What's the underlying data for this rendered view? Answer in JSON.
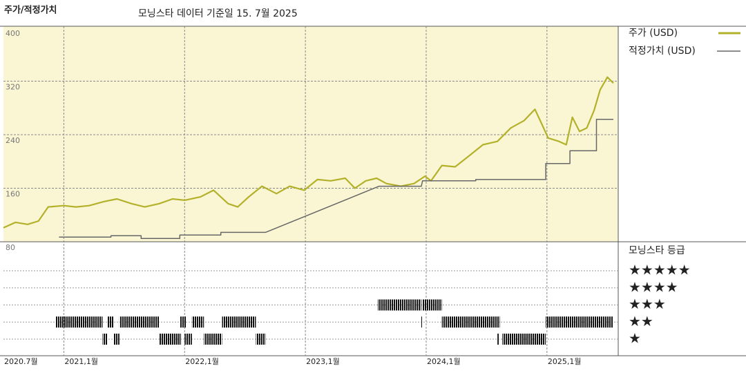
{
  "chart_data": {
    "type": "line",
    "title": "주가/적정가치",
    "subtitle": "모닝스타 데이터 기준일 15. 7월 2025",
    "xlim": [
      2020.5,
      2025.59
    ],
    "xticks": [
      {
        "value": 2020.5,
        "label": "2020.7월"
      },
      {
        "value": 2021,
        "label": "2021,1월"
      },
      {
        "value": 2022,
        "label": "2022,1월"
      },
      {
        "value": 2023,
        "label": "2023,1월"
      },
      {
        "value": 2024,
        "label": "2024,1월"
      },
      {
        "value": 2025,
        "label": "2025,1월"
      }
    ],
    "ylim": [
      80,
      400
    ],
    "yticks": [
      80,
      160,
      240,
      320,
      400
    ],
    "grid": true,
    "legend": "right",
    "series": [
      {
        "name": "주가 (USD)",
        "color": "#b3b02a",
        "x": [
          2020.5,
          2020.6,
          2020.7,
          2020.79,
          2020.87,
          2021.0,
          2021.1,
          2021.21,
          2021.33,
          2021.44,
          2021.56,
          2021.67,
          2021.79,
          2021.9,
          2022.0,
          2022.13,
          2022.24,
          2022.36,
          2022.44,
          2022.53,
          2022.64,
          2022.76,
          2022.87,
          2022.99,
          2023.1,
          2023.21,
          2023.33,
          2023.41,
          2023.5,
          2023.59,
          2023.67,
          2023.79,
          2023.9,
          2023.99,
          2024.04,
          2024.13,
          2024.24,
          2024.36,
          2024.47,
          2024.59,
          2024.7,
          2024.81,
          2024.9,
          2024.96,
          2025.01,
          2025.1,
          2025.16,
          2025.21,
          2025.27,
          2025.33,
          2025.39,
          2025.44,
          2025.5,
          2025.55
        ],
        "values": [
          101,
          109,
          106,
          111,
          132,
          134,
          132,
          134,
          140,
          144,
          137,
          132,
          137,
          144,
          142,
          147,
          157,
          137,
          132,
          147,
          163,
          152,
          163,
          157,
          173,
          171,
          175,
          160,
          171,
          175,
          167,
          163,
          167,
          178,
          171,
          194,
          192,
          209,
          225,
          230,
          250,
          261,
          278,
          255,
          235,
          230,
          225,
          266,
          245,
          250,
          276,
          307,
          326,
          317
        ]
      },
      {
        "name": "적정가치 (USD)",
        "color": "#666666",
        "x": [
          2020.96,
          2021.39,
          2021.39,
          2021.64,
          2021.64,
          2021.96,
          2021.96,
          2022.3,
          2022.3,
          2022.67,
          2023.61,
          2023.96,
          2023.97,
          2024.41,
          2024.41,
          2024.99,
          2024.99,
          2025.19,
          2025.19,
          2025.41,
          2025.41,
          2025.55
        ],
        "values": [
          87,
          87,
          89,
          89,
          85,
          85,
          90,
          90,
          94,
          94,
          163,
          163,
          171,
          171,
          173,
          173,
          197,
          197,
          216,
          216,
          263,
          263
        ]
      }
    ],
    "rating_title": "모닝스타 등급",
    "rating_labels": [
      "★",
      "★★",
      "★★★",
      "★★★★",
      "★★★★★"
    ],
    "ratings": [
      {
        "stars": 2,
        "start": 2020.93,
        "end": 2021.32
      },
      {
        "stars": 1,
        "start": 2021.32,
        "end": 2021.36
      },
      {
        "stars": 2,
        "start": 2021.36,
        "end": 2021.41
      },
      {
        "stars": 1,
        "start": 2021.41,
        "end": 2021.46
      },
      {
        "stars": 2,
        "start": 2021.46,
        "end": 2021.79
      },
      {
        "stars": 1,
        "start": 2021.79,
        "end": 2021.97
      },
      {
        "stars": 2,
        "start": 2021.96,
        "end": 2022.01
      },
      {
        "stars": 1,
        "start": 2022.0,
        "end": 2022.06
      },
      {
        "stars": 2,
        "start": 2022.06,
        "end": 2022.16
      },
      {
        "stars": 1,
        "start": 2022.16,
        "end": 2022.31
      },
      {
        "stars": 2,
        "start": 2022.31,
        "end": 2022.59
      },
      {
        "stars": 1,
        "start": 2022.59,
        "end": 2022.67
      },
      {
        "stars": 3,
        "start": 2023.6,
        "end": 2023.96
      },
      {
        "stars": 2,
        "start": 2023.96,
        "end": 2023.97
      },
      {
        "stars": 3,
        "start": 2023.97,
        "end": 2024.13
      },
      {
        "stars": 2,
        "start": 2024.13,
        "end": 2024.61
      },
      {
        "stars": 1,
        "start": 2024.59,
        "end": 2024.6
      },
      {
        "stars": 1,
        "start": 2024.63,
        "end": 2024.99
      },
      {
        "stars": 2,
        "start": 2024.99,
        "end": 2025.55
      }
    ]
  }
}
